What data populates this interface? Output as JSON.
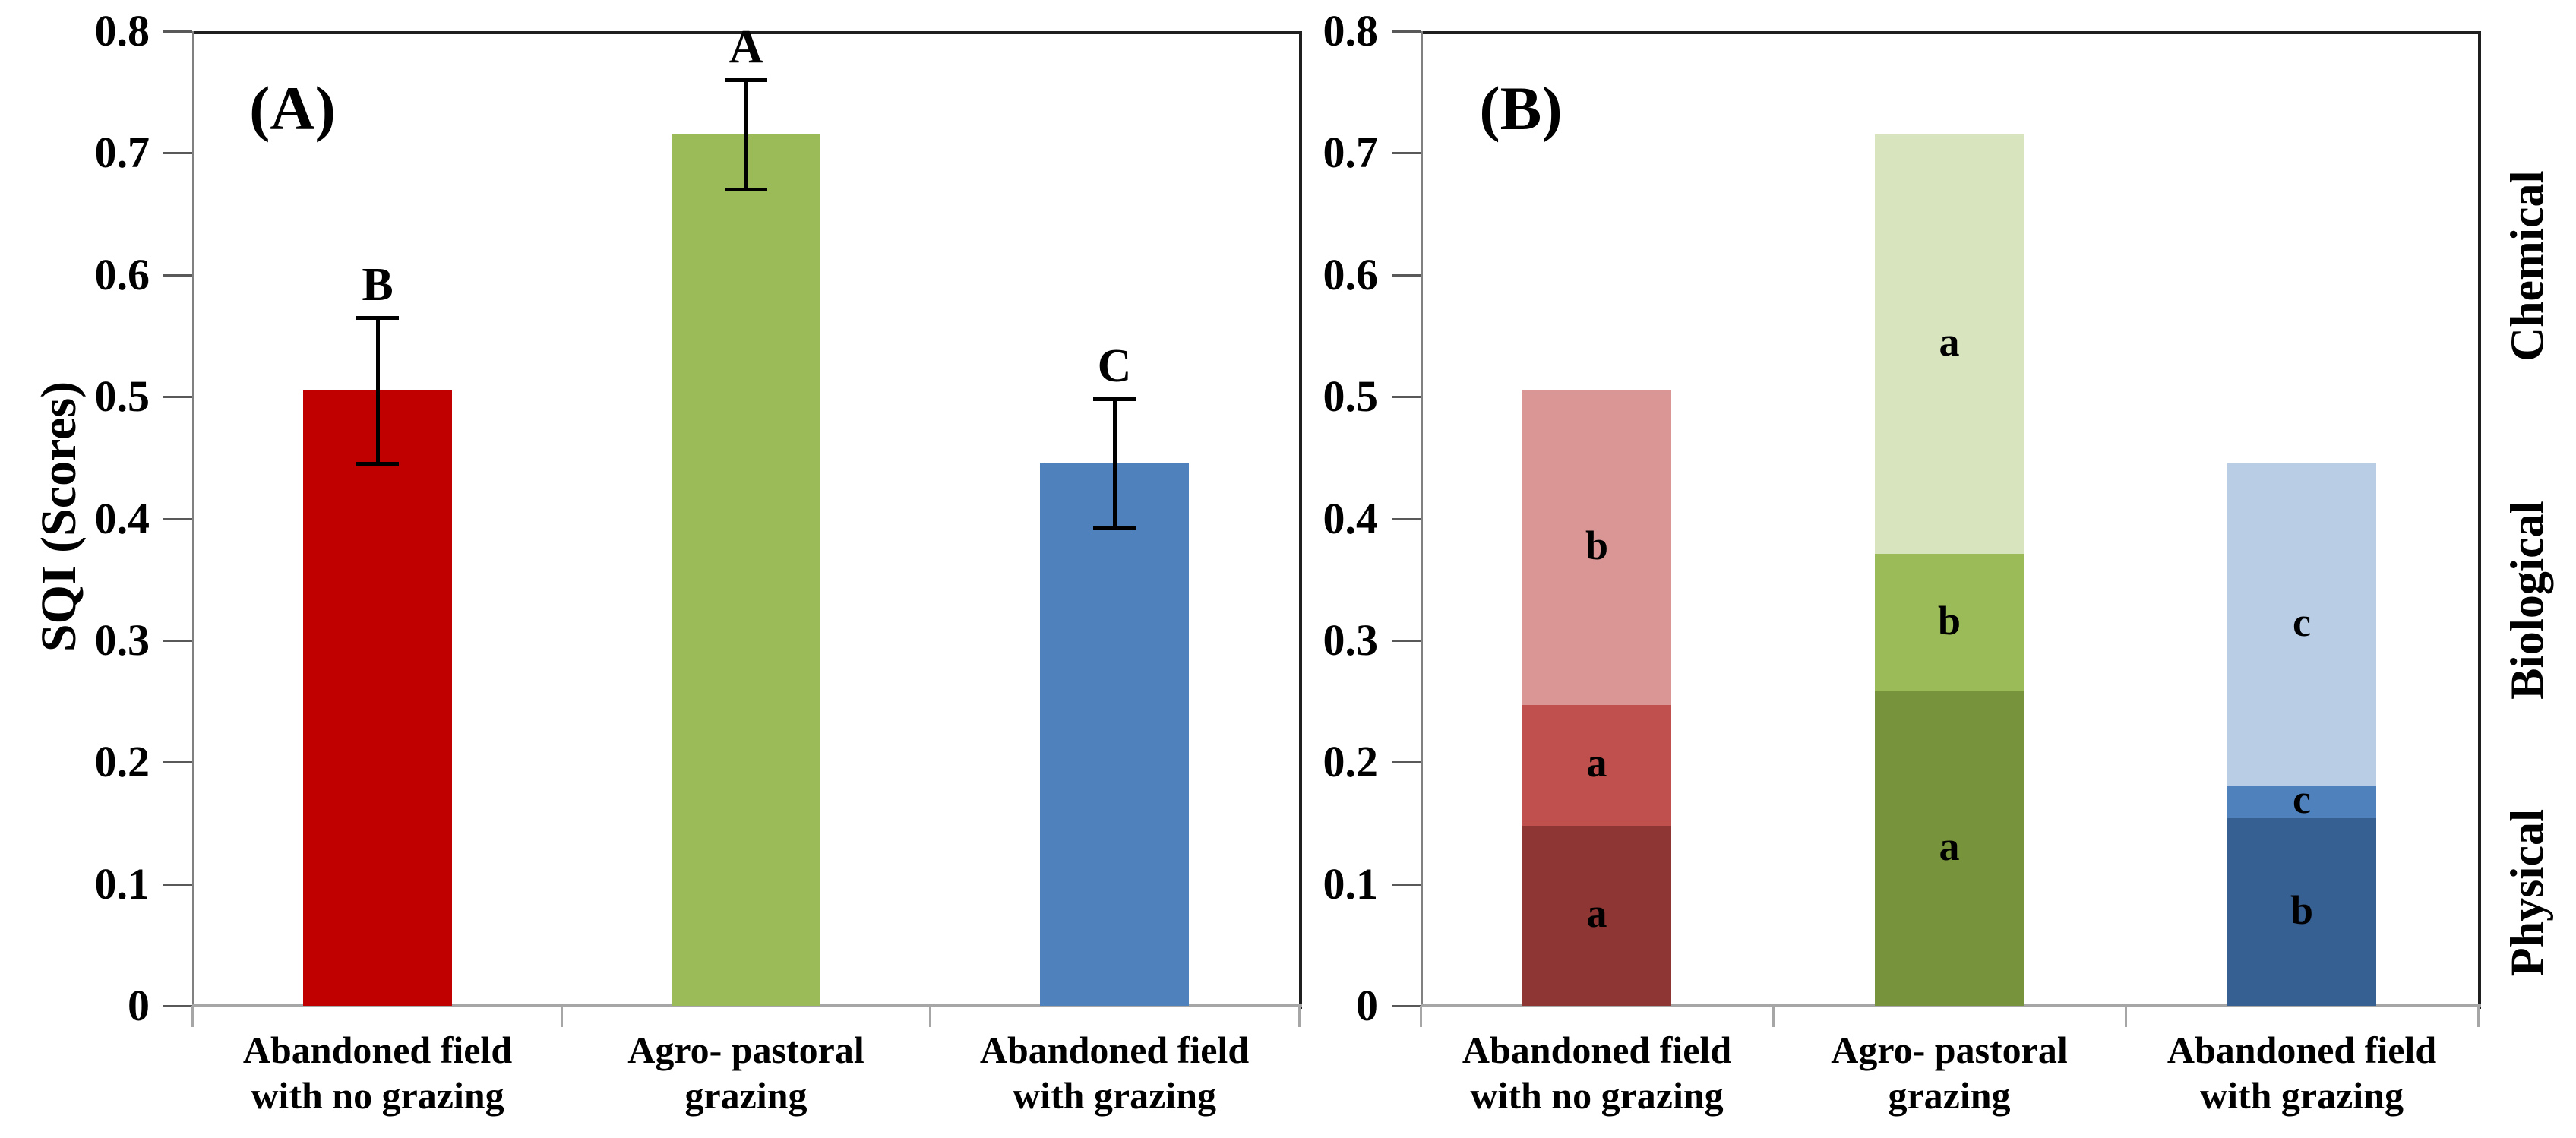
{
  "figure": {
    "background": "#ffffff",
    "ylabel": "SQI (Scores)",
    "ytick_labels": [
      "0",
      "0.1",
      "0.2",
      "0.3",
      "0.4",
      "0.5",
      "0.6",
      "0.7",
      "0.8"
    ],
    "ymax": 0.8,
    "right_axis_labels": [
      "Chemical",
      "Biological",
      "Physical"
    ]
  },
  "chart_data": [
    {
      "type": "bar",
      "panel_label": "(A)",
      "ylabel": "SQI (Scores)",
      "ylim": [
        0,
        0.8
      ],
      "grid": false,
      "categories": [
        [
          "Abandoned field",
          "with no grazing"
        ],
        [
          "Agro- pastoral",
          "grazing"
        ],
        [
          "Abandoned field",
          "with grazing"
        ]
      ],
      "values": [
        0.505,
        0.715,
        0.445
      ],
      "errors": [
        0.06,
        0.045,
        0.053
      ],
      "significance_letters": [
        "B",
        "A",
        "C"
      ],
      "bar_colors": [
        "#C00000",
        "#9BBB59",
        "#4F81BD"
      ]
    },
    {
      "type": "stacked-bar",
      "panel_label": "(B)",
      "ylim": [
        0,
        0.8
      ],
      "grid": false,
      "categories": [
        [
          "Abandoned field",
          "with no grazing"
        ],
        [
          "Agro- pastoral",
          "grazing"
        ],
        [
          "Abandoned field",
          "with grazing"
        ]
      ],
      "series": [
        {
          "name": "Physical",
          "values": [
            0.148,
            0.258,
            0.154
          ],
          "letters": [
            "a",
            "a",
            "b"
          ],
          "colors": [
            "#8E3634",
            "#77933C",
            "#376092"
          ]
        },
        {
          "name": "Biological",
          "values": [
            0.099,
            0.113,
            0.027
          ],
          "letters": [
            "a",
            "b",
            "c"
          ],
          "colors": [
            "#C0504D",
            "#9BBB59",
            "#4F81BD"
          ]
        },
        {
          "name": "Chemical",
          "values": [
            0.258,
            0.344,
            0.264
          ],
          "letters": [
            "b",
            "a",
            "c"
          ],
          "colors": [
            "#D99694",
            "#D7E4BD",
            "#B9CDE5"
          ]
        }
      ],
      "right_labels": [
        "Chemical",
        "Biological",
        "Physical"
      ]
    }
  ]
}
